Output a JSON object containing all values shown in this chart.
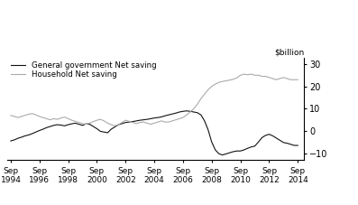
{
  "title": "",
  "ylabel": "$billion",
  "ylim": [
    -13,
    33
  ],
  "yticks": [
    -10,
    0,
    10,
    20,
    30
  ],
  "xtick_years": [
    1994,
    1996,
    1998,
    2000,
    2002,
    2004,
    2006,
    2008,
    2010,
    2012,
    2014
  ],
  "gov_color": "#111111",
  "household_color": "#aaaaaa",
  "legend_gov": "General government Net saving",
  "legend_hh": "Household Net saving",
  "background_color": "#ffffff",
  "gov_data": [
    [
      1994.75,
      -4.5
    ],
    [
      1995.0,
      -4.0
    ],
    [
      1995.25,
      -3.3
    ],
    [
      1995.5,
      -2.8
    ],
    [
      1995.75,
      -2.2
    ],
    [
      1996.0,
      -1.8
    ],
    [
      1996.25,
      -1.2
    ],
    [
      1996.5,
      -0.5
    ],
    [
      1996.75,
      0.2
    ],
    [
      1997.0,
      0.8
    ],
    [
      1997.25,
      1.5
    ],
    [
      1997.5,
      2.0
    ],
    [
      1997.75,
      2.5
    ],
    [
      1998.0,
      2.8
    ],
    [
      1998.25,
      2.6
    ],
    [
      1998.5,
      2.3
    ],
    [
      1998.75,
      2.8
    ],
    [
      1999.0,
      3.2
    ],
    [
      1999.25,
      3.5
    ],
    [
      1999.5,
      3.0
    ],
    [
      1999.75,
      2.5
    ],
    [
      2000.0,
      3.2
    ],
    [
      2000.25,
      3.0
    ],
    [
      2000.5,
      2.0
    ],
    [
      2000.75,
      1.0
    ],
    [
      2001.0,
      -0.2
    ],
    [
      2001.25,
      -0.5
    ],
    [
      2001.5,
      -0.8
    ],
    [
      2001.75,
      0.8
    ],
    [
      2002.0,
      1.8
    ],
    [
      2002.25,
      2.8
    ],
    [
      2002.5,
      3.3
    ],
    [
      2002.75,
      3.8
    ],
    [
      2003.0,
      4.0
    ],
    [
      2003.25,
      4.2
    ],
    [
      2003.5,
      4.5
    ],
    [
      2003.75,
      4.8
    ],
    [
      2004.0,
      5.0
    ],
    [
      2004.25,
      5.2
    ],
    [
      2004.5,
      5.5
    ],
    [
      2004.75,
      5.8
    ],
    [
      2005.0,
      6.0
    ],
    [
      2005.25,
      6.3
    ],
    [
      2005.5,
      6.8
    ],
    [
      2005.75,
      7.2
    ],
    [
      2006.0,
      7.6
    ],
    [
      2006.25,
      8.0
    ],
    [
      2006.5,
      8.5
    ],
    [
      2006.75,
      8.8
    ],
    [
      2007.0,
      9.0
    ],
    [
      2007.25,
      8.8
    ],
    [
      2007.5,
      8.5
    ],
    [
      2007.75,
      8.2
    ],
    [
      2008.0,
      7.2
    ],
    [
      2008.25,
      4.5
    ],
    [
      2008.5,
      0.5
    ],
    [
      2008.75,
      -5.0
    ],
    [
      2009.0,
      -8.5
    ],
    [
      2009.25,
      -10.2
    ],
    [
      2009.5,
      -10.8
    ],
    [
      2009.75,
      -10.3
    ],
    [
      2010.0,
      -9.8
    ],
    [
      2010.25,
      -9.3
    ],
    [
      2010.5,
      -9.0
    ],
    [
      2010.75,
      -9.0
    ],
    [
      2011.0,
      -8.5
    ],
    [
      2011.25,
      -7.8
    ],
    [
      2011.5,
      -7.2
    ],
    [
      2011.75,
      -6.8
    ],
    [
      2012.0,
      -5.0
    ],
    [
      2012.25,
      -3.0
    ],
    [
      2012.5,
      -2.0
    ],
    [
      2012.75,
      -1.5
    ],
    [
      2013.0,
      -2.2
    ],
    [
      2013.25,
      -3.2
    ],
    [
      2013.5,
      -4.2
    ],
    [
      2013.75,
      -5.2
    ],
    [
      2014.0,
      -5.5
    ],
    [
      2014.25,
      -6.0
    ],
    [
      2014.5,
      -6.5
    ],
    [
      2014.75,
      -6.5
    ]
  ],
  "hh_data": [
    [
      1994.75,
      7.0
    ],
    [
      1995.0,
      6.5
    ],
    [
      1995.25,
      6.0
    ],
    [
      1995.5,
      6.5
    ],
    [
      1995.75,
      7.0
    ],
    [
      1996.0,
      7.5
    ],
    [
      1996.25,
      7.8
    ],
    [
      1996.5,
      7.2
    ],
    [
      1996.75,
      6.5
    ],
    [
      1997.0,
      6.0
    ],
    [
      1997.25,
      5.5
    ],
    [
      1997.5,
      5.0
    ],
    [
      1997.75,
      5.5
    ],
    [
      1998.0,
      5.2
    ],
    [
      1998.25,
      5.8
    ],
    [
      1998.5,
      6.2
    ],
    [
      1998.75,
      5.5
    ],
    [
      1999.0,
      4.8
    ],
    [
      1999.25,
      4.3
    ],
    [
      1999.5,
      3.8
    ],
    [
      1999.75,
      3.3
    ],
    [
      2000.0,
      3.0
    ],
    [
      2000.25,
      3.5
    ],
    [
      2000.5,
      4.2
    ],
    [
      2000.75,
      4.8
    ],
    [
      2001.0,
      5.2
    ],
    [
      2001.25,
      4.5
    ],
    [
      2001.5,
      3.5
    ],
    [
      2001.75,
      2.8
    ],
    [
      2002.0,
      2.3
    ],
    [
      2002.25,
      2.8
    ],
    [
      2002.5,
      3.8
    ],
    [
      2002.75,
      4.8
    ],
    [
      2003.0,
      4.3
    ],
    [
      2003.25,
      3.8
    ],
    [
      2003.5,
      3.3
    ],
    [
      2003.75,
      3.8
    ],
    [
      2004.0,
      4.0
    ],
    [
      2004.25,
      3.5
    ],
    [
      2004.5,
      3.0
    ],
    [
      2004.75,
      3.5
    ],
    [
      2005.0,
      4.0
    ],
    [
      2005.25,
      4.5
    ],
    [
      2005.5,
      4.0
    ],
    [
      2005.75,
      4.0
    ],
    [
      2006.0,
      4.5
    ],
    [
      2006.25,
      5.0
    ],
    [
      2006.5,
      5.5
    ],
    [
      2006.75,
      6.0
    ],
    [
      2007.0,
      7.2
    ],
    [
      2007.25,
      8.5
    ],
    [
      2007.5,
      10.0
    ],
    [
      2007.75,
      12.0
    ],
    [
      2008.0,
      14.5
    ],
    [
      2008.25,
      16.5
    ],
    [
      2008.5,
      18.5
    ],
    [
      2008.75,
      20.0
    ],
    [
      2009.0,
      21.0
    ],
    [
      2009.25,
      21.8
    ],
    [
      2009.5,
      22.2
    ],
    [
      2009.75,
      22.5
    ],
    [
      2010.0,
      22.8
    ],
    [
      2010.25,
      23.2
    ],
    [
      2010.5,
      23.8
    ],
    [
      2010.75,
      25.0
    ],
    [
      2011.0,
      25.5
    ],
    [
      2011.25,
      25.2
    ],
    [
      2011.5,
      25.5
    ],
    [
      2011.75,
      25.0
    ],
    [
      2012.0,
      25.0
    ],
    [
      2012.25,
      24.5
    ],
    [
      2012.5,
      24.5
    ],
    [
      2012.75,
      24.0
    ],
    [
      2013.0,
      23.5
    ],
    [
      2013.25,
      23.0
    ],
    [
      2013.5,
      23.5
    ],
    [
      2013.75,
      24.0
    ],
    [
      2014.0,
      23.5
    ],
    [
      2014.25,
      23.0
    ],
    [
      2014.5,
      23.0
    ],
    [
      2014.75,
      23.0
    ]
  ]
}
